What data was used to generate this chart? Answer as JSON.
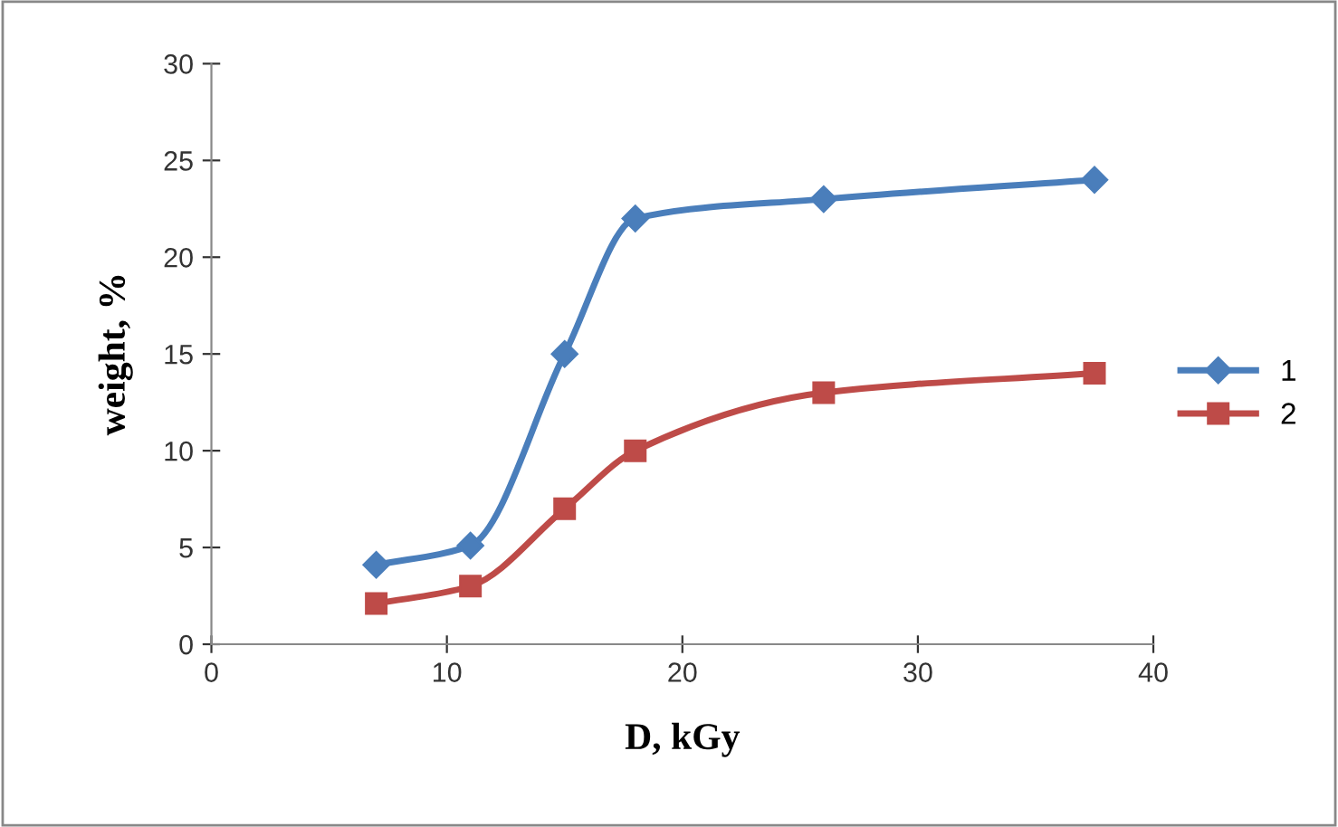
{
  "chart_data": {
    "type": "line",
    "xlabel": "D, kGy",
    "ylabel": "weight, %",
    "series": [
      {
        "name": "1",
        "color": "#4a7ebb",
        "marker": "diamond",
        "x": [
          7,
          11,
          15,
          18,
          26,
          37.5
        ],
        "values": [
          4.1,
          5.1,
          15,
          22,
          23,
          24
        ]
      },
      {
        "name": "2",
        "color": "#be4b48",
        "marker": "square",
        "x": [
          7,
          11,
          15,
          18,
          26,
          37.5
        ],
        "values": [
          2.1,
          3,
          7,
          10,
          13,
          14
        ]
      }
    ],
    "xlim": [
      0,
      40
    ],
    "xticks": [
      0,
      10,
      20,
      30,
      40
    ],
    "ylim": [
      0,
      30
    ],
    "yticks": [
      0,
      5,
      10,
      15,
      20,
      25,
      30
    ],
    "grid": false,
    "legend": "right",
    "line_style": "solid"
  }
}
